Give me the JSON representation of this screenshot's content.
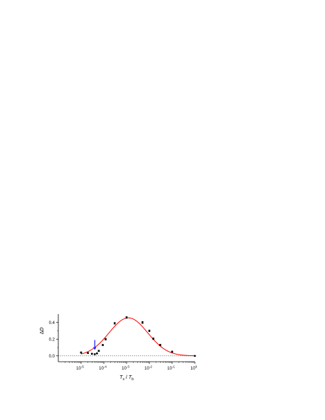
{
  "chart_data": {
    "type": "scatter",
    "xlabel": "T_s / T_b",
    "ylabel": "ΔD",
    "xscale": "log",
    "xlim": [
      1e-06,
      1
    ],
    "ylim": [
      -0.07,
      0.5
    ],
    "x_tick_labels": [
      {
        "base": "10",
        "exp": "-5"
      },
      {
        "base": "10",
        "exp": "-4"
      },
      {
        "base": "10",
        "exp": "-3"
      },
      {
        "base": "10",
        "exp": "-2"
      },
      {
        "base": "10",
        "exp": "-1"
      },
      {
        "base": "10",
        "exp": "0"
      }
    ],
    "x_tick_values": [
      1e-05,
      0.0001,
      0.001,
      0.01,
      0.1,
      1
    ],
    "y_tick_labels": [
      "0.0",
      "0.2",
      "0.4"
    ],
    "y_tick_values": [
      0.0,
      0.2,
      0.4
    ],
    "reference_line": {
      "y": 0.0,
      "style": "dotted",
      "color": "#555555"
    },
    "series": [
      {
        "kind": "points",
        "color": "#000000",
        "x": [
          1e-05,
          2e-05,
          3e-05,
          4e-05,
          5e-05,
          6e-05,
          9e-05,
          0.00012,
          0.0003,
          0.001,
          0.005,
          0.01,
          0.015,
          0.03,
          0.1,
          1
        ],
        "y": [
          0.04,
          0.035,
          0.025,
          0.02,
          0.03,
          0.06,
          0.13,
          0.2,
          0.39,
          0.46,
          0.4,
          0.3,
          0.205,
          0.13,
          0.05,
          0.0
        ],
        "err": [
          0.008,
          0.006,
          0.006,
          0.006,
          0.006,
          0.008,
          0.008,
          0.01,
          0.01,
          0.01,
          0.012,
          0.01,
          0.01,
          0.01,
          0.008,
          0.004
        ]
      },
      {
        "kind": "fit-curve",
        "color": "#ff0000",
        "model": "lognormal-peak",
        "peak_x": 0.0012,
        "peak_y": 0.455,
        "width_decades": 0.85,
        "x_range": [
          1e-05,
          1
        ]
      }
    ],
    "annotations": [
      {
        "kind": "arrow",
        "color": "#1a1aff",
        "x": 4e-05,
        "y_from": 0.19,
        "y_to": 0.07
      }
    ],
    "grid": false,
    "legend": "none"
  }
}
